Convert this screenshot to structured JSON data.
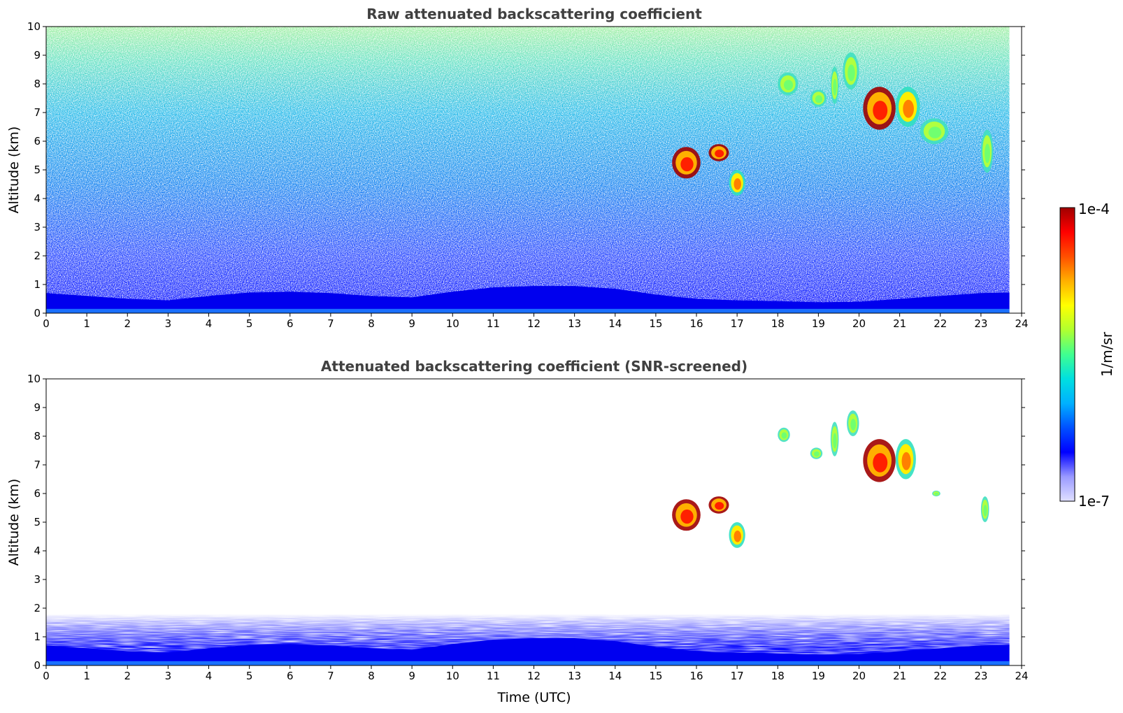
{
  "chart_data": [
    {
      "type": "heatmap",
      "title": "Raw attenuated backscattering coefficient",
      "xlabel": "",
      "ylabel": "Altitude (km)",
      "xlim": [
        0,
        24
      ],
      "ylim": [
        0,
        10
      ],
      "xticks": [
        0,
        1,
        2,
        3,
        4,
        5,
        6,
        7,
        8,
        9,
        10,
        11,
        12,
        13,
        14,
        15,
        16,
        17,
        18,
        19,
        20,
        21,
        22,
        23,
        24
      ],
      "yticks": [
        0,
        1,
        2,
        3,
        4,
        5,
        6,
        7,
        8,
        9,
        10
      ],
      "data_extent_x": [
        0,
        23.7
      ],
      "boundary_layer_top_km": [
        [
          0,
          0.7
        ],
        [
          2,
          0.5
        ],
        [
          3,
          0.45
        ],
        [
          4,
          0.6
        ],
        [
          5,
          0.72
        ],
        [
          6,
          0.75
        ],
        [
          7,
          0.7
        ],
        [
          8,
          0.6
        ],
        [
          9,
          0.55
        ],
        [
          10,
          0.75
        ],
        [
          11,
          0.9
        ],
        [
          12,
          0.95
        ],
        [
          13,
          0.95
        ],
        [
          14,
          0.85
        ],
        [
          15,
          0.65
        ],
        [
          16,
          0.5
        ],
        [
          17,
          0.45
        ],
        [
          18,
          0.42
        ],
        [
          19,
          0.38
        ],
        [
          20,
          0.4
        ],
        [
          21,
          0.5
        ],
        [
          22,
          0.6
        ],
        [
          23,
          0.7
        ],
        [
          23.7,
          0.72
        ]
      ],
      "cloud_features": [
        {
          "x": [
            15.4,
            16.1
          ],
          "y": [
            4.7,
            5.8
          ],
          "intensity": "high"
        },
        {
          "x": [
            16.3,
            16.8
          ],
          "y": [
            5.3,
            5.9
          ],
          "intensity": "high"
        },
        {
          "x": [
            16.8,
            17.2
          ],
          "y": [
            4.1,
            5.0
          ],
          "intensity": "medium"
        },
        {
          "x": [
            18.0,
            18.5
          ],
          "y": [
            7.6,
            8.4
          ],
          "intensity": "low"
        },
        {
          "x": [
            18.8,
            19.2
          ],
          "y": [
            7.2,
            7.8
          ],
          "intensity": "low"
        },
        {
          "x": [
            19.3,
            19.5
          ],
          "y": [
            7.3,
            8.6
          ],
          "intensity": "low"
        },
        {
          "x": [
            19.6,
            20.0
          ],
          "y": [
            7.8,
            9.1
          ],
          "intensity": "low"
        },
        {
          "x": [
            20.1,
            20.9
          ],
          "y": [
            6.4,
            7.9
          ],
          "intensity": "high"
        },
        {
          "x": [
            20.9,
            21.5
          ],
          "y": [
            6.5,
            7.9
          ],
          "intensity": "medium"
        },
        {
          "x": [
            21.5,
            22.2
          ],
          "y": [
            5.9,
            6.8
          ],
          "intensity": "low"
        },
        {
          "x": [
            23.0,
            23.3
          ],
          "y": [
            4.9,
            6.4
          ],
          "intensity": "low"
        }
      ]
    },
    {
      "type": "heatmap",
      "title": "Attenuated backscattering coefficient (SNR-screened)",
      "xlabel": "Time (UTC)",
      "ylabel": "Altitude (km)",
      "xlim": [
        0,
        24
      ],
      "ylim": [
        0,
        10
      ],
      "xticks": [
        0,
        1,
        2,
        3,
        4,
        5,
        6,
        7,
        8,
        9,
        10,
        11,
        12,
        13,
        14,
        15,
        16,
        17,
        18,
        19,
        20,
        21,
        22,
        23,
        24
      ],
      "yticks": [
        0,
        1,
        2,
        3,
        4,
        5,
        6,
        7,
        8,
        9,
        10
      ],
      "data_extent_x": [
        0,
        23.7
      ],
      "screened_layer_top_km": 1.5,
      "cloud_features": [
        {
          "x": [
            15.4,
            16.1
          ],
          "y": [
            4.7,
            5.8
          ],
          "intensity": "high"
        },
        {
          "x": [
            16.3,
            16.8
          ],
          "y": [
            5.3,
            5.9
          ],
          "intensity": "high"
        },
        {
          "x": [
            16.8,
            17.2
          ],
          "y": [
            4.1,
            5.0
          ],
          "intensity": "medium"
        },
        {
          "x": [
            18.0,
            18.3
          ],
          "y": [
            7.8,
            8.3
          ],
          "intensity": "low"
        },
        {
          "x": [
            18.8,
            19.1
          ],
          "y": [
            7.2,
            7.6
          ],
          "intensity": "low"
        },
        {
          "x": [
            19.3,
            19.5
          ],
          "y": [
            7.3,
            8.5
          ],
          "intensity": "low"
        },
        {
          "x": [
            19.7,
            20.0
          ],
          "y": [
            8.0,
            8.9
          ],
          "intensity": "low"
        },
        {
          "x": [
            20.1,
            20.9
          ],
          "y": [
            6.4,
            7.9
          ],
          "intensity": "high"
        },
        {
          "x": [
            20.9,
            21.4
          ],
          "y": [
            6.5,
            7.9
          ],
          "intensity": "medium"
        },
        {
          "x": [
            21.8,
            22.0
          ],
          "y": [
            5.9,
            6.1
          ],
          "intensity": "low"
        },
        {
          "x": [
            23.0,
            23.2
          ],
          "y": [
            5.0,
            5.9
          ],
          "intensity": "low"
        }
      ]
    }
  ],
  "colorbar": {
    "min_label": "1e-7",
    "max_label": "1e-4",
    "label": "1/m/sr",
    "scale": "log",
    "colors": [
      "#e0e0ff",
      "#9a9aff",
      "#0000ff",
      "#0050ff",
      "#00b0ff",
      "#00e0e0",
      "#40ff90",
      "#b0ff30",
      "#ffff00",
      "#ffb000",
      "#ff5000",
      "#ff0000",
      "#a00000"
    ]
  }
}
